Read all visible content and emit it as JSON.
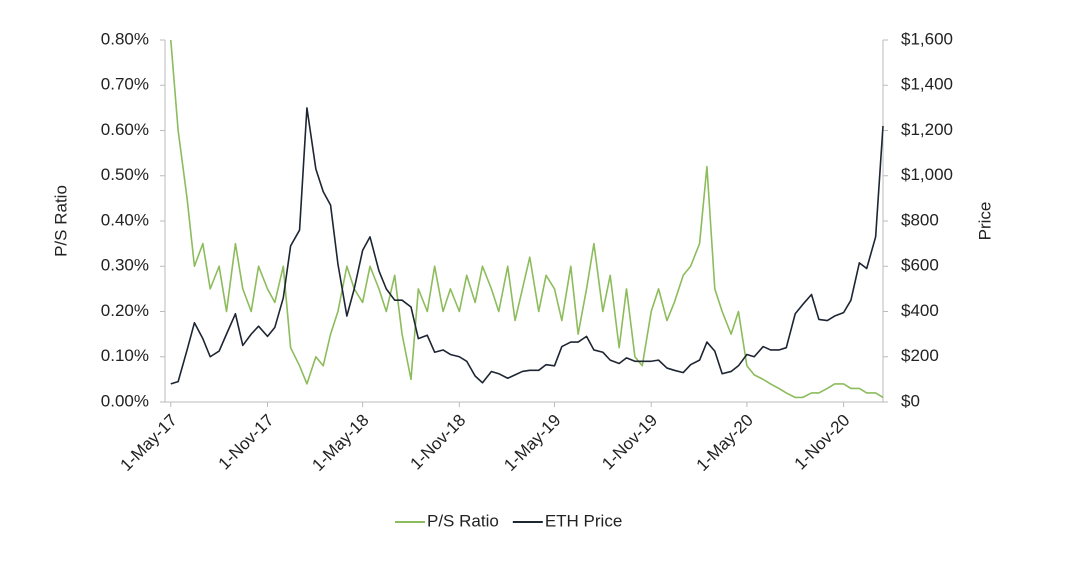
{
  "chart_data": {
    "type": "line",
    "x": [
      "1-May-17",
      "15-May-17",
      "1-Jun-17",
      "15-Jun-17",
      "1-Jul-17",
      "15-Jul-17",
      "1-Aug-17",
      "15-Aug-17",
      "1-Sep-17",
      "15-Sep-17",
      "1-Oct-17",
      "15-Oct-17",
      "1-Nov-17",
      "15-Nov-17",
      "1-Dec-17",
      "15-Dec-17",
      "1-Jan-18",
      "15-Jan-18",
      "1-Feb-18",
      "15-Feb-18",
      "1-Mar-18",
      "15-Mar-18",
      "1-Apr-18",
      "15-Apr-18",
      "1-May-18",
      "15-May-18",
      "1-Jun-18",
      "15-Jun-18",
      "1-Jul-18",
      "15-Jul-18",
      "1-Aug-18",
      "15-Aug-18",
      "1-Sep-18",
      "15-Sep-18",
      "1-Oct-18",
      "15-Oct-18",
      "1-Nov-18",
      "15-Nov-18",
      "1-Dec-18",
      "15-Dec-18",
      "1-Jan-19",
      "15-Jan-19",
      "1-Feb-19",
      "15-Feb-19",
      "1-Mar-19",
      "15-Mar-19",
      "1-Apr-19",
      "15-Apr-19",
      "1-May-19",
      "15-May-19",
      "1-Jun-19",
      "15-Jun-19",
      "1-Jul-19",
      "15-Jul-19",
      "1-Aug-19",
      "15-Aug-19",
      "1-Sep-19",
      "15-Sep-19",
      "1-Oct-19",
      "15-Oct-19",
      "1-Nov-19",
      "15-Nov-19",
      "1-Dec-19",
      "15-Dec-19",
      "1-Jan-20",
      "15-Jan-20",
      "1-Feb-20",
      "15-Feb-20",
      "1-Mar-20",
      "15-Mar-20",
      "1-Apr-20",
      "15-Apr-20",
      "1-May-20",
      "15-May-20",
      "1-Jun-20",
      "15-Jun-20",
      "1-Jul-20",
      "15-Jul-20",
      "1-Aug-20",
      "15-Aug-20",
      "1-Sep-20",
      "15-Sep-20",
      "1-Oct-20",
      "15-Oct-20",
      "1-Nov-20",
      "15-Nov-20",
      "1-Dec-20",
      "15-Dec-20",
      "1-Jan-21",
      "15-Jan-21"
    ],
    "series": [
      {
        "name": "P/S Ratio",
        "color": "#8cbc5c",
        "values": [
          0.8,
          0.6,
          0.45,
          0.3,
          0.35,
          0.25,
          0.3,
          0.2,
          0.35,
          0.25,
          0.2,
          0.3,
          0.25,
          0.22,
          0.3,
          0.12,
          0.08,
          0.04,
          0.1,
          0.08,
          0.15,
          0.2,
          0.3,
          0.25,
          0.22,
          0.3,
          0.25,
          0.2,
          0.28,
          0.15,
          0.05,
          0.25,
          0.2,
          0.3,
          0.2,
          0.25,
          0.2,
          0.28,
          0.22,
          0.3,
          0.25,
          0.2,
          0.3,
          0.18,
          0.25,
          0.32,
          0.2,
          0.28,
          0.25,
          0.18,
          0.3,
          0.15,
          0.25,
          0.35,
          0.2,
          0.28,
          0.12,
          0.25,
          0.1,
          0.08,
          0.2,
          0.25,
          0.18,
          0.22,
          0.28,
          0.3,
          0.35,
          0.52,
          0.25,
          0.2,
          0.15,
          0.2,
          0.08,
          0.06,
          0.05,
          0.04,
          0.03,
          0.02,
          0.01,
          0.01,
          0.02,
          0.02,
          0.03,
          0.04,
          0.04,
          0.03,
          0.03,
          0.02,
          0.02,
          0.01
        ]
      },
      {
        "name": "ETH Price",
        "color": "#1e2533",
        "axis": "y2",
        "values": [
          80,
          90,
          230,
          350,
          280,
          200,
          225,
          300,
          390,
          250,
          300,
          335,
          290,
          330,
          460,
          690,
          760,
          1300,
          1030,
          930,
          870,
          610,
          380,
          500,
          670,
          730,
          580,
          500,
          450,
          450,
          420,
          280,
          295,
          220,
          230,
          210,
          200,
          180,
          115,
          85,
          135,
          125,
          105,
          120,
          135,
          140,
          140,
          165,
          160,
          245,
          265,
          265,
          290,
          230,
          220,
          185,
          170,
          195,
          180,
          180,
          180,
          185,
          150,
          140,
          130,
          165,
          185,
          265,
          225,
          125,
          135,
          160,
          210,
          200,
          245,
          230,
          230,
          240,
          390,
          430,
          475,
          365,
          360,
          380,
          395,
          450,
          615,
          590,
          730,
          1220
        ]
      }
    ],
    "y_label": "P/S Ratio",
    "y2_label": "Price",
    "xlim": [
      "20-Apr-17",
      "15-Jan-21"
    ],
    "xticks": [
      "1-May-17",
      "1-Nov-17",
      "1-May-18",
      "1-Nov-18",
      "1-May-19",
      "1-Nov-19",
      "1-May-20",
      "1-Nov-20"
    ],
    "ylim": [
      0,
      0.8
    ],
    "yticks": [
      {
        "value": 0,
        "label": "0.00%"
      },
      {
        "value": 0.1,
        "label": "0.10%"
      },
      {
        "value": 0.2,
        "label": "0.20%"
      },
      {
        "value": 0.3,
        "label": "0.30%"
      },
      {
        "value": 0.4,
        "label": "0.40%"
      },
      {
        "value": 0.5,
        "label": "0.50%"
      },
      {
        "value": 0.6,
        "label": "0.60%"
      },
      {
        "value": 0.7,
        "label": "0.70%"
      },
      {
        "value": 0.8,
        "label": "0.80%"
      }
    ],
    "y2lim": [
      0,
      1600
    ],
    "y2ticks": [
      {
        "value": 0,
        "label": "$0"
      },
      {
        "value": 200,
        "label": "$200"
      },
      {
        "value": 400,
        "label": "$400"
      },
      {
        "value": 600,
        "label": "$600"
      },
      {
        "value": 800,
        "label": "$800"
      },
      {
        "value": 1000,
        "label": "$1,000"
      },
      {
        "value": 1200,
        "label": "$1,200"
      },
      {
        "value": 1400,
        "label": "$1,400"
      },
      {
        "value": 1600,
        "label": "$1,600"
      }
    ],
    "legend": "bottom"
  }
}
